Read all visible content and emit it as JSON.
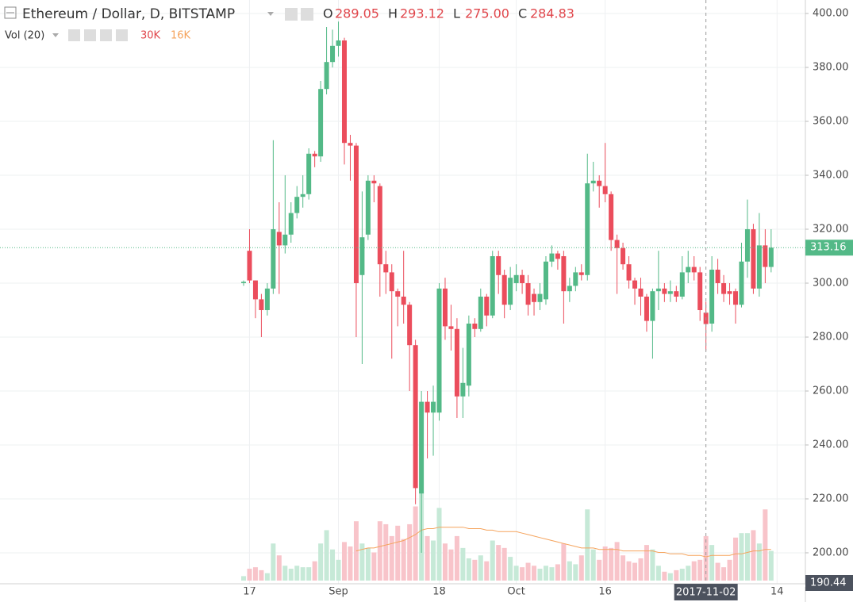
{
  "header": {
    "title": "Ethereum / Dollar, D, BITSTAMP",
    "ohlc": [
      {
        "key": "O",
        "value": "289.05"
      },
      {
        "key": "H",
        "value": "293.12"
      },
      {
        "key": "L",
        "value": "275.00"
      },
      {
        "key": "C",
        "value": "284.83"
      }
    ],
    "volume_title": "Vol (20)",
    "volume_value": "30K",
    "volume_ma_value": "16K"
  },
  "chart_data": {
    "type": "candlestick",
    "x": [
      "2017-08-16",
      "2017-08-17",
      "2017-08-18",
      "2017-08-19",
      "2017-08-20",
      "2017-08-21",
      "2017-08-22",
      "2017-08-23",
      "2017-08-24",
      "2017-08-25",
      "2017-08-26",
      "2017-08-27",
      "2017-08-28",
      "2017-08-29",
      "2017-08-30",
      "2017-08-31",
      "2017-09-01",
      "2017-09-02",
      "2017-09-03",
      "2017-09-04",
      "2017-09-05",
      "2017-09-06",
      "2017-09-07",
      "2017-09-08",
      "2017-09-09",
      "2017-09-10",
      "2017-09-11",
      "2017-09-12",
      "2017-09-13",
      "2017-09-14",
      "2017-09-15",
      "2017-09-16",
      "2017-09-17",
      "2017-09-18",
      "2017-09-19",
      "2017-09-20",
      "2017-09-21",
      "2017-09-22",
      "2017-09-23",
      "2017-09-24",
      "2017-09-25",
      "2017-09-26",
      "2017-09-27",
      "2017-09-28",
      "2017-09-29",
      "2017-09-30",
      "2017-10-01",
      "2017-10-02",
      "2017-10-03",
      "2017-10-04",
      "2017-10-05",
      "2017-10-06",
      "2017-10-07",
      "2017-10-08",
      "2017-10-09",
      "2017-10-10",
      "2017-10-11",
      "2017-10-12",
      "2017-10-13",
      "2017-10-14",
      "2017-10-15",
      "2017-10-16",
      "2017-10-17",
      "2017-10-18",
      "2017-10-19",
      "2017-10-20",
      "2017-10-21",
      "2017-10-22",
      "2017-10-23",
      "2017-10-24",
      "2017-10-25",
      "2017-10-26",
      "2017-10-27",
      "2017-10-28",
      "2017-10-29",
      "2017-10-30",
      "2017-10-31",
      "2017-11-01",
      "2017-11-02",
      "2017-11-03",
      "2017-11-04",
      "2017-11-05",
      "2017-11-06",
      "2017-11-07",
      "2017-11-08",
      "2017-11-09",
      "2017-11-10",
      "2017-11-11",
      "2017-11-12",
      "2017-11-13"
    ],
    "open": [
      300,
      312,
      301,
      294,
      290,
      298,
      319,
      314,
      318,
      326,
      332,
      333,
      348,
      347,
      372,
      382,
      388,
      390,
      352,
      351,
      303,
      318,
      338,
      336,
      307,
      304,
      297,
      295,
      292,
      277,
      222,
      256,
      252,
      252,
      298,
      284,
      283,
      258,
      262,
      285,
      283,
      295,
      288,
      310,
      303,
      292,
      300,
      303,
      300,
      296,
      293,
      294,
      308,
      311,
      310,
      297,
      299,
      304,
      303,
      337,
      338,
      336,
      333,
      316,
      313,
      307,
      301,
      298,
      295,
      286,
      297,
      298,
      296,
      297,
      295,
      304,
      306,
      304,
      289.05,
      285,
      305,
      300,
      297,
      297,
      292,
      308,
      320,
      298,
      314,
      306
    ],
    "high": [
      301,
      320,
      301,
      296,
      300,
      353,
      330,
      340,
      330,
      336,
      340,
      350,
      349,
      375,
      395,
      394,
      397,
      391,
      355,
      352,
      334,
      340,
      340,
      337,
      312,
      307,
      298,
      312,
      293,
      279,
      260,
      260,
      262,
      300,
      302,
      292,
      287,
      276,
      288,
      287,
      298,
      296,
      312,
      312,
      305,
      306,
      307,
      305,
      303,
      298,
      300,
      310,
      314,
      312,
      312,
      302,
      306,
      307,
      348,
      345,
      340,
      352,
      334,
      318,
      315,
      310,
      302,
      302,
      296,
      298,
      312,
      300,
      301,
      299,
      310,
      312,
      310,
      306,
      293.12,
      310,
      309,
      303,
      300,
      298,
      315,
      331,
      322,
      326,
      320,
      320
    ],
    "low": [
      299,
      300,
      287,
      280,
      288,
      296,
      296,
      311,
      315,
      324,
      328,
      331,
      343,
      345,
      370,
      380,
      384,
      344,
      338,
      280,
      270,
      316,
      330,
      295,
      296,
      272,
      284,
      285,
      260,
      218,
      200,
      235,
      236,
      249,
      279,
      275,
      250,
      250,
      258,
      280,
      282,
      284,
      287,
      296,
      287,
      290,
      297,
      296,
      288,
      288,
      290,
      292,
      306,
      305,
      285,
      293,
      297,
      301,
      301,
      334,
      328,
      330,
      312,
      296,
      305,
      298,
      292,
      288,
      282,
      272,
      290,
      293,
      293,
      293,
      294,
      300,
      301,
      286,
      275,
      282,
      296,
      293,
      292,
      285,
      291,
      302,
      296,
      295,
      300,
      304
    ],
    "close": [
      300.5,
      301,
      294,
      290,
      298,
      320,
      314,
      318,
      326,
      332,
      333,
      348,
      347,
      372,
      382,
      388,
      390,
      352,
      351,
      300,
      317,
      338,
      337,
      307,
      304,
      297,
      295,
      292,
      277,
      224,
      256,
      252,
      256,
      298,
      284,
      283,
      258,
      263,
      285,
      283,
      295,
      288,
      310,
      303,
      292,
      302,
      303,
      300,
      292,
      293,
      296,
      308,
      311,
      309,
      297,
      299,
      304,
      303,
      337,
      338,
      336,
      333,
      316,
      313,
      307,
      301,
      298,
      295,
      286,
      297,
      298,
      296,
      297,
      295,
      304,
      306,
      304,
      290,
      284.83,
      305,
      300,
      296,
      296,
      292,
      308,
      320,
      298,
      314,
      306,
      313.16
    ],
    "up_color": "#53b987",
    "down_color": "#eb4d5c",
    "ylim": [
      189.7,
      405.0
    ],
    "yticks": [
      {
        "value": 200,
        "label": "200.00"
      },
      {
        "value": 220,
        "label": "220.00"
      },
      {
        "value": 240,
        "label": "240.00"
      },
      {
        "value": 260,
        "label": "260.00"
      },
      {
        "value": 280,
        "label": "280.00"
      },
      {
        "value": 300,
        "label": "300.00"
      },
      {
        "value": 320,
        "label": "320.00"
      },
      {
        "value": 340,
        "label": "340.00"
      },
      {
        "value": 360,
        "label": "360.00"
      },
      {
        "value": 380,
        "label": "380.00"
      },
      {
        "value": 400,
        "label": "400.00"
      }
    ],
    "xticks": [
      {
        "value": "2017-08-17",
        "label": "17"
      },
      {
        "value": "2017-09-01",
        "label": "Sep"
      },
      {
        "value": "2017-09-18",
        "label": "18"
      },
      {
        "value": "2017-10-01",
        "label": "Oct"
      },
      {
        "value": "2017-10-16",
        "label": "16"
      },
      {
        "value": "2017-11-14",
        "label": "14"
      }
    ],
    "grid": true,
    "crosshair": "2017-11-02",
    "bottom_tag": "190.44",
    "volume": {
      "up_color": "#c6e9d7",
      "down_color": "#f8c4ca",
      "ma_color": "#f5a35c",
      "values": [
        3,
        8,
        9,
        7,
        5,
        25,
        17,
        10,
        8,
        10,
        9,
        9,
        13,
        25,
        34,
        21,
        14,
        26,
        23,
        40,
        25,
        22,
        19,
        40,
        38,
        30,
        37,
        28,
        38,
        50,
        60,
        30,
        27,
        49,
        25,
        21,
        30,
        22,
        15,
        14,
        17,
        13,
        27,
        24,
        22,
        16,
        10,
        9,
        12,
        10,
        8,
        10,
        9,
        11,
        25,
        13,
        11,
        17,
        48,
        21,
        14,
        23,
        22,
        26,
        17,
        13,
        12,
        15,
        24,
        21,
        10,
        6,
        5,
        7,
        8,
        10,
        13,
        14,
        30,
        24,
        12,
        9,
        14,
        29,
        32,
        32,
        34,
        25,
        48,
        20
      ],
      "ma": [
        null,
        null,
        null,
        null,
        null,
        null,
        null,
        null,
        null,
        null,
        null,
        null,
        null,
        null,
        null,
        null,
        null,
        null,
        null,
        20,
        21,
        22,
        22,
        23,
        24,
        25,
        26,
        27,
        29,
        31,
        34,
        35,
        35,
        36,
        36,
        36,
        36,
        36,
        35,
        35,
        35,
        34,
        34,
        33,
        33,
        33,
        33,
        32,
        31,
        30,
        29,
        28,
        27,
        26,
        25,
        24,
        23,
        22,
        22,
        22,
        21,
        21,
        21,
        21,
        20,
        20,
        20,
        20,
        20,
        20,
        19,
        19,
        18,
        18,
        18,
        17,
        17,
        17,
        16,
        17,
        17,
        17,
        17,
        18,
        18,
        19,
        20,
        20,
        21,
        21
      ]
    }
  }
}
